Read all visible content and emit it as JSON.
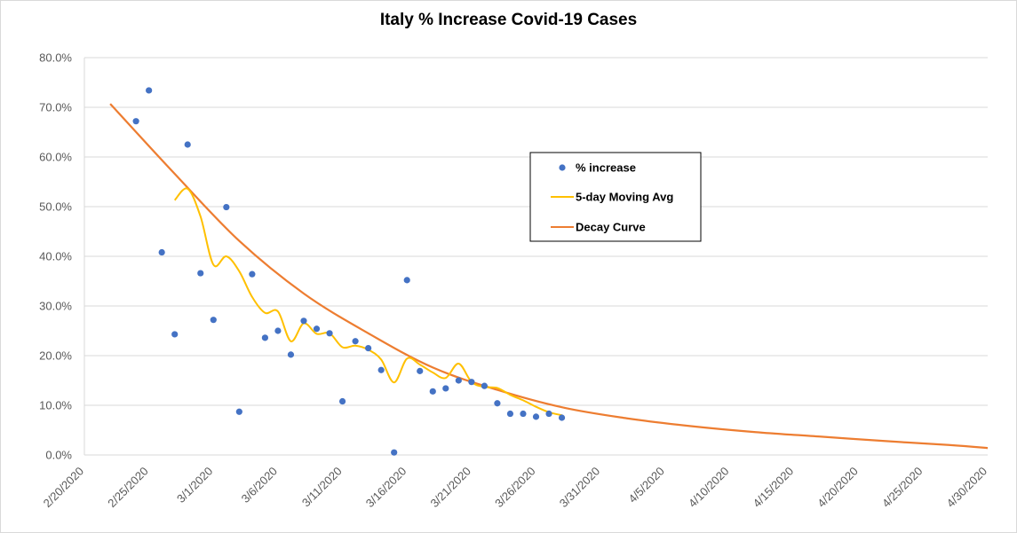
{
  "chart_data": {
    "type": "scatter",
    "title": "Italy % Increase Covid-19 Cases",
    "xlabel": "",
    "ylabel": "",
    "x_ticks": [
      "2/20/2020",
      "2/25/2020",
      "3/1/2020",
      "3/6/2020",
      "3/11/2020",
      "3/16/2020",
      "3/21/2020",
      "3/26/2020",
      "3/31/2020",
      "4/5/2020",
      "4/10/2020",
      "4/15/2020",
      "4/20/2020",
      "4/25/2020",
      "4/30/2020"
    ],
    "y_ticks": [
      "0.0%",
      "10.0%",
      "20.0%",
      "30.0%",
      "40.0%",
      "50.0%",
      "60.0%",
      "70.0%",
      "80.0%"
    ],
    "xlim": [
      "2020-02-20",
      "2020-04-30"
    ],
    "ylim": [
      0,
      80
    ],
    "y_unit": "%",
    "grid": "horizontal",
    "legend_position": "right-center",
    "series": [
      {
        "name": "% increase",
        "kind": "scatter",
        "color": "#4472c4",
        "points": [
          [
            "2020-02-24",
            67.2
          ],
          [
            "2020-02-25",
            73.4
          ],
          [
            "2020-02-26",
            40.8
          ],
          [
            "2020-02-27",
            24.3
          ],
          [
            "2020-02-28",
            62.5
          ],
          [
            "2020-02-29",
            36.6
          ],
          [
            "2020-03-01",
            27.2
          ],
          [
            "2020-03-02",
            49.9
          ],
          [
            "2020-03-03",
            8.7
          ],
          [
            "2020-03-04",
            36.4
          ],
          [
            "2020-03-05",
            23.6
          ],
          [
            "2020-03-06",
            25.0
          ],
          [
            "2020-03-07",
            20.2
          ],
          [
            "2020-03-08",
            27.0
          ],
          [
            "2020-03-09",
            25.4
          ],
          [
            "2020-03-10",
            24.5
          ],
          [
            "2020-03-11",
            10.8
          ],
          [
            "2020-03-12",
            22.9
          ],
          [
            "2020-03-13",
            21.5
          ],
          [
            "2020-03-14",
            17.1
          ],
          [
            "2020-03-15",
            0.5
          ],
          [
            "2020-03-16",
            35.2
          ],
          [
            "2020-03-17",
            16.9
          ],
          [
            "2020-03-18",
            12.8
          ],
          [
            "2020-03-19",
            13.4
          ],
          [
            "2020-03-20",
            15.0
          ],
          [
            "2020-03-21",
            14.7
          ],
          [
            "2020-03-22",
            13.9
          ],
          [
            "2020-03-23",
            10.4
          ],
          [
            "2020-03-24",
            8.3
          ],
          [
            "2020-03-25",
            8.3
          ],
          [
            "2020-03-26",
            7.7
          ],
          [
            "2020-03-27",
            8.3
          ],
          [
            "2020-03-28",
            7.5
          ]
        ]
      },
      {
        "name": "5-day Moving Avg",
        "kind": "line",
        "smooth": true,
        "color": "#ffc000",
        "points": [
          [
            "2020-02-27",
            51.3
          ],
          [
            "2020-02-28",
            53.6
          ],
          [
            "2020-02-29",
            48.0
          ],
          [
            "2020-03-01",
            38.3
          ],
          [
            "2020-03-02",
            40.0
          ],
          [
            "2020-03-03",
            37.0
          ],
          [
            "2020-03-04",
            31.8
          ],
          [
            "2020-03-05",
            28.6
          ],
          [
            "2020-03-06",
            28.9
          ],
          [
            "2020-03-07",
            22.9
          ],
          [
            "2020-03-08",
            26.5
          ],
          [
            "2020-03-09",
            24.4
          ],
          [
            "2020-03-10",
            24.5
          ],
          [
            "2020-03-11",
            21.7
          ],
          [
            "2020-03-12",
            22.0
          ],
          [
            "2020-03-13",
            21.2
          ],
          [
            "2020-03-14",
            19.2
          ],
          [
            "2020-03-15",
            14.6
          ],
          [
            "2020-03-16",
            19.4
          ],
          [
            "2020-03-17",
            18.2
          ],
          [
            "2020-03-18",
            16.6
          ],
          [
            "2020-03-19",
            15.5
          ],
          [
            "2020-03-20",
            18.4
          ],
          [
            "2020-03-21",
            14.7
          ],
          [
            "2020-03-22",
            13.7
          ],
          [
            "2020-03-23",
            13.5
          ],
          [
            "2020-03-24",
            12.1
          ],
          [
            "2020-03-25",
            11.0
          ],
          [
            "2020-03-26",
            9.7
          ],
          [
            "2020-03-27",
            8.6
          ],
          [
            "2020-03-28",
            8.0
          ]
        ]
      },
      {
        "name": "Decay Curve",
        "kind": "curve",
        "color": "#ed7d31",
        "points": [
          [
            "2020-02-22",
            70.7
          ],
          [
            "2020-02-27",
            56.6
          ],
          [
            "2020-03-03",
            43.1
          ],
          [
            "2020-03-08",
            32.5
          ],
          [
            "2020-03-13",
            24.5
          ],
          [
            "2020-03-18",
            17.6
          ],
          [
            "2020-03-23",
            13.1
          ],
          [
            "2020-03-28",
            9.6
          ],
          [
            "2020-04-02",
            7.4
          ],
          [
            "2020-04-07",
            5.8
          ],
          [
            "2020-04-12",
            4.6
          ],
          [
            "2020-04-17",
            3.7
          ],
          [
            "2020-04-22",
            2.8
          ],
          [
            "2020-04-27",
            2.0
          ],
          [
            "2020-04-30",
            1.4
          ]
        ]
      }
    ]
  }
}
